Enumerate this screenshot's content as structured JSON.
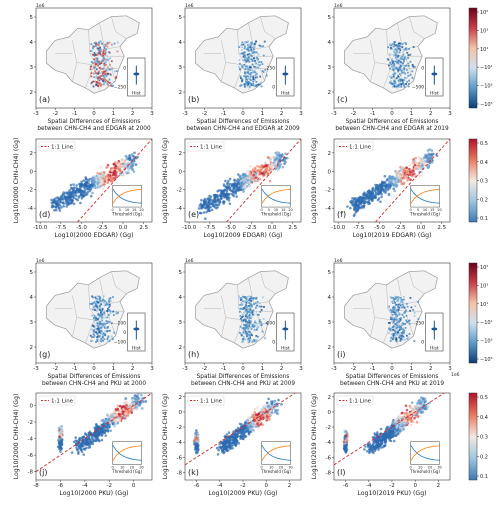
{
  "chart_data": [
    {
      "panel": "a",
      "type": "map",
      "offset_label": "1e6",
      "xticks": [
        -3,
        -2,
        -1,
        0,
        1,
        2,
        3
      ],
      "yticks": [
        2,
        3,
        4,
        5
      ],
      "inset": {
        "label": "Hist",
        "ticks": [
          "0",
          "−250"
        ]
      },
      "xlabel_lines": [
        "Spatial Differences of Emissions",
        "between CHN-CH4 and EDGAR at 2000"
      ],
      "emphasis": "mixed"
    },
    {
      "panel": "b",
      "type": "map",
      "offset_label": "1e6",
      "xticks": [
        -3,
        -2,
        -1,
        0,
        1,
        2,
        3
      ],
      "yticks": [
        2,
        3,
        4,
        5
      ],
      "inset": {
        "label": "Hist",
        "ticks": [
          "250",
          "0"
        ]
      },
      "xlabel_lines": [
        "Spatial Differences of Emissions",
        "between CHN-CH4 and EDGAR at 2009"
      ],
      "emphasis": "blue"
    },
    {
      "panel": "c",
      "type": "map",
      "offset_label": "1e6",
      "xticks": [
        -3,
        -2,
        -1,
        0,
        1,
        2,
        3
      ],
      "yticks": [
        2,
        3,
        4,
        5
      ],
      "inset": {
        "label": "Hist",
        "ticks": [
          "0",
          "−500"
        ]
      },
      "xlabel_lines": [
        "Spatial Differences of Emissions",
        "between CHN-CH4 and EDGAR at 2019"
      ],
      "emphasis": "blue"
    },
    {
      "panel": "d",
      "type": "scatter",
      "legend": "1:1 Line",
      "xlabel": "Log10(2000 EDGAR) (Gg)",
      "ylabel": "Log10(2000 CHN-CH4) (Gg)",
      "xticks": [
        "-10.0",
        "-7.5",
        "-5.0",
        "-2.5",
        "0.0",
        "2.5"
      ],
      "yticks": [
        "-4",
        "-2",
        "0",
        "2"
      ],
      "xlim": [
        -10.5,
        3.5
      ],
      "ylim": [
        -5.5,
        3.5
      ],
      "density": [
        {
          "x0": -8.5,
          "y0": -3.8,
          "x1": 1.5,
          "y1": 1.3
        }
      ],
      "inset": {
        "xlabel": "Threshold (Gg)",
        "xticks": [
          "0",
          "5",
          "10",
          "15",
          "20"
        ]
      }
    },
    {
      "panel": "e",
      "type": "scatter",
      "legend": "1:1 Line",
      "xlabel": "Log10(2009 EDGAR) (Gg)",
      "ylabel": "Log10(2009 CHN-CH4) (Gg)",
      "xticks": [
        "-10.0",
        "-7.5",
        "-5.0",
        "-2.5",
        "0.0",
        "2.5"
      ],
      "yticks": [
        "-4",
        "-2",
        "0",
        "2"
      ],
      "xlim": [
        -10.5,
        3.5
      ],
      "ylim": [
        -5.5,
        3.5
      ],
      "density": [
        {
          "x0": -8.5,
          "y0": -4.0,
          "x1": 1.5,
          "y1": 1.6
        }
      ],
      "inset": {
        "xlabel": "Threshold (Gg)",
        "xticks": [
          "0",
          "5",
          "10",
          "15",
          "20"
        ]
      }
    },
    {
      "panel": "f",
      "type": "scatter",
      "legend": "1:1 Line",
      "xlabel": "Log10(2019 EDGAR) (Gg)",
      "ylabel": "Log10(2019 CHN-CH4) (Gg)",
      "xticks": [
        "-10.0",
        "-7.5",
        "-5.0",
        "-2.5",
        "0.0",
        "2.5"
      ],
      "yticks": [
        "-4",
        "-2",
        "0",
        "2"
      ],
      "xlim": [
        -10.5,
        3.5
      ],
      "ylim": [
        -5.5,
        3.5
      ],
      "density": [
        {
          "x0": -8.5,
          "y0": -4.0,
          "x1": 1.5,
          "y1": 1.6
        }
      ],
      "inset": {
        "xlabel": "Threshold (Gg)",
        "xticks": [
          "0",
          "5",
          "10",
          "15",
          "20"
        ]
      }
    },
    {
      "panel": "g",
      "type": "map",
      "offset_label": "1e6",
      "xticks": [
        -3,
        -2,
        -1,
        0,
        1,
        2,
        3
      ],
      "yticks": [
        2,
        3,
        4,
        5
      ],
      "inset": {
        "label": "Hist",
        "ticks": [
          "100",
          "0",
          "−100"
        ]
      },
      "xlabel_lines": [
        "Spatial Differences of Emissions",
        "between CHN-CH4 and PKU at 2000"
      ],
      "emphasis": "blue"
    },
    {
      "panel": "h",
      "type": "map",
      "offset_label": "1e6",
      "xticks": [
        -3,
        -2,
        -1,
        0,
        1,
        2,
        3
      ],
      "yticks": [
        2,
        3,
        4,
        5
      ],
      "inset": {
        "label": "Hist",
        "ticks": [
          "100",
          "0"
        ]
      },
      "xlabel_lines": [
        "Spatial Differences of Emissions",
        "between CHN-CH4 and PKU at 2009"
      ],
      "emphasis": "blue"
    },
    {
      "panel": "i",
      "type": "map",
      "offset_label": "1e6",
      "xticks": [
        -3,
        -2,
        -1,
        0,
        1,
        2,
        3
      ],
      "yticks": [
        2,
        3,
        4,
        5
      ],
      "inset": {
        "label": "Hist",
        "ticks": [
          "250",
          "0"
        ]
      },
      "xlabel_lines": [
        "Spatial Differences of Emissions",
        "between CHN-CH4 and PKU at 2019"
      ],
      "emphasis": "blue",
      "axis_offset_label": "1e6"
    },
    {
      "panel": "j",
      "type": "scatter",
      "legend": "1:1 Line",
      "xlabel": "Log10(2000 PKU) (Gg)",
      "ylabel": "Log10(2000 CHN-CH4) (Gg)",
      "xticks": [
        "-8",
        "-6",
        "-4",
        "-2",
        "0"
      ],
      "yticks": [
        "-8",
        "-6",
        "-4",
        "-2",
        "0"
      ],
      "xlim": [
        -8,
        1.5
      ],
      "ylim": [
        -9,
        1.5
      ],
      "density": [
        {
          "x0": -4.5,
          "y0": -5.0,
          "x1": 0.5,
          "y1": 0.8
        },
        {
          "x0": -6.0,
          "y0": -5.2,
          "x1": -6.0,
          "y1": -3.0
        }
      ],
      "inset": {
        "xlabel": "Threshold (Gg)",
        "xticks": [
          "0",
          "10",
          "20",
          "30"
        ]
      }
    },
    {
      "panel": "k",
      "type": "scatter",
      "legend": "1:1 Line",
      "xlabel": "Log10(2009 PKU) (Gg)",
      "ylabel": "Log10(2009 CHN-CH4) (Gg)",
      "xticks": [
        "-6",
        "-4",
        "-2",
        "0",
        "2"
      ],
      "yticks": [
        "-8",
        "-6",
        "-4",
        "-2",
        "0",
        "2"
      ],
      "xlim": [
        -7,
        3
      ],
      "ylim": [
        -9,
        2.5
      ],
      "density": [
        {
          "x0": -3.8,
          "y0": -4.8,
          "x1": 0.8,
          "y1": 1.0
        },
        {
          "x0": -6.0,
          "y0": -5.2,
          "x1": -6.0,
          "y1": -3.0
        }
      ],
      "inset": {
        "xlabel": "Threshold (Gg)",
        "xticks": [
          "0",
          "10",
          "20",
          "30"
        ]
      }
    },
    {
      "panel": "l",
      "type": "scatter",
      "legend": "1:1 Line",
      "xlabel": "Log10(2019 PKU) (Gg)",
      "ylabel": "Log10(2019 CHN-CH4) (Gg)",
      "xticks": [
        "-6",
        "-4",
        "-2",
        "0",
        "2"
      ],
      "yticks": [
        "-8",
        "-6",
        "-4",
        "-2",
        "0",
        "2"
      ],
      "xlim": [
        -7,
        3
      ],
      "ylim": [
        -9,
        2.5
      ],
      "density": [
        {
          "x0": -3.8,
          "y0": -4.8,
          "x1": 0.8,
          "y1": 1.0
        },
        {
          "x0": -6.0,
          "y0": -5.2,
          "x1": -6.0,
          "y1": -3.0
        }
      ],
      "inset": {
        "xlabel": "Threshold (Gg)",
        "xticks": [
          "0",
          "10",
          "20",
          "30"
        ]
      }
    }
  ],
  "colorbars": [
    {
      "name": "diff-edgar",
      "ticks": [
        "10⁵",
        "10³",
        "10¹",
        "−10¹",
        "−10³",
        "−10⁵"
      ],
      "colors": [
        "#6b0119",
        "#c7404a",
        "#f5c2a9",
        "#cfe0ef",
        "#5a9bcb",
        "#0b3d78"
      ]
    },
    {
      "name": "density-edgar",
      "ticks": [
        "0.5",
        "0.4",
        "0.3",
        "0.2",
        "0.1"
      ],
      "colors": [
        "#b0122a",
        "#e8795f",
        "#f5e9e3",
        "#9ec5e0",
        "#3f78b3"
      ]
    },
    {
      "name": "diff-pku",
      "ticks": [
        "10⁵",
        "10³",
        "10¹",
        "−10¹",
        "−10³",
        "−10⁵"
      ],
      "colors": [
        "#6b0119",
        "#c7404a",
        "#f5c2a9",
        "#cfe0ef",
        "#5a9bcb",
        "#0b3d78"
      ]
    },
    {
      "name": "density-pku",
      "ticks": [
        "0.5",
        "0.4",
        "0.3",
        "0.2",
        "0.1"
      ],
      "colors": [
        "#b0122a",
        "#e8795f",
        "#f5e9e3",
        "#9ec5e0",
        "#3f78b3"
      ]
    }
  ],
  "colors": {
    "line": "#d62728",
    "blue": "#2c6bb0",
    "red": "#c43c3c",
    "land": "#f2f2f2",
    "border": "#9a9a9a",
    "inset_blue": "#1f77b4",
    "inset_orange": "#ff7f0e"
  }
}
